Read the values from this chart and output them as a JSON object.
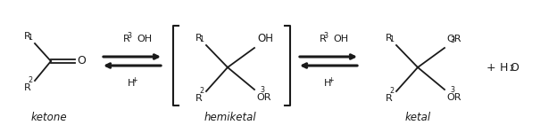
{
  "bg_color": "#ffffff",
  "line_color": "#1a1a1a",
  "text_color": "#1a1a1a",
  "figsize": [
    6.24,
    1.41
  ],
  "dpi": 100,
  "ketone_label": "ketone",
  "hemiketal_label": "hemiketal",
  "ketal_label": "ketal"
}
